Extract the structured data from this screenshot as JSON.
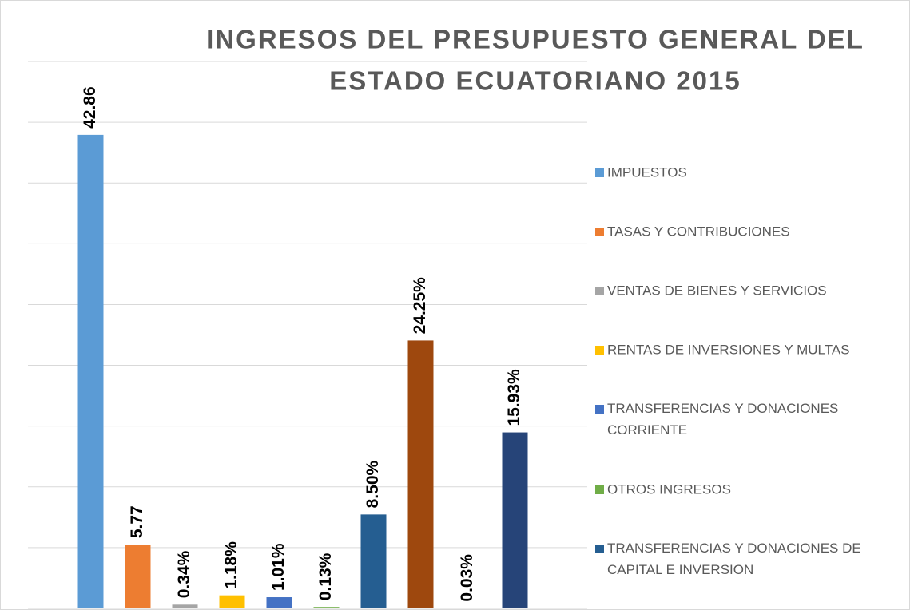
{
  "chart_data": {
    "type": "bar",
    "title": [
      "INGRESOS DEL PRESUPUESTO GENERAL DEL",
      "ESTADO ECUATORIANO 2015"
    ],
    "categories": [
      "IMPUESTOS",
      "TASAS Y CONTRIBUCIONES",
      "VENTAS DE BIENES Y SERVICIOS",
      "RENTAS DE INVERSIONES Y MULTAS",
      "TRANSFERENCIAS Y DONACIONES CORRIENTE",
      "OTROS INGRESOS",
      "TRANSFERENCIAS Y DONACIONES DE CAPITAL E INVERSION",
      null,
      null,
      null
    ],
    "values": [
      42.86,
      5.77,
      0.34,
      1.18,
      1.01,
      0.13,
      8.5,
      24.25,
      0.03,
      15.93
    ],
    "value_labels": [
      "42.86",
      "5.77",
      "0.34%",
      "1.18%",
      "1.01%",
      "0.13%",
      "8.50%",
      "24.25%",
      "0.03%",
      "15.93%"
    ],
    "colors": [
      "#5b9bd5",
      "#ed7d31",
      "#a5a5a5",
      "#ffc000",
      "#4472c4",
      "#70ad47",
      "#255e91",
      "#9e480e",
      "#636363",
      "#264478"
    ],
    "ylim": [
      0,
      49.5
    ],
    "yticks": [
      0,
      5.5,
      11,
      16.5,
      22,
      27.5,
      33,
      38.5,
      44,
      49.5
    ],
    "grid": true,
    "legend": "right"
  }
}
